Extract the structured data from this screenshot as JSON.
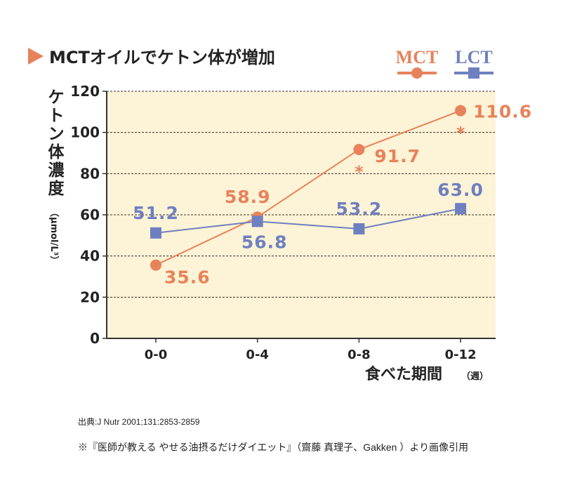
{
  "chart_data": {
    "type": "line",
    "title": "MCTオイルでケトン体が増加",
    "categories": [
      "0-0",
      "0-4",
      "0-8",
      "0-12"
    ],
    "series": [
      {
        "name": "MCT",
        "color": "#e8825a",
        "marker": "circle",
        "values": [
          35.6,
          58.9,
          91.7,
          110.6
        ],
        "labels": [
          "35.6",
          "58.9",
          "91.7",
          "110.6"
        ],
        "significance": [
          "",
          "",
          "*",
          "*"
        ]
      },
      {
        "name": "LCT",
        "color": "#6e80c0",
        "marker": "square",
        "values": [
          51.2,
          56.8,
          53.2,
          63.0
        ],
        "labels": [
          "51.2",
          "56.8",
          "53.2",
          "63.0"
        ]
      }
    ],
    "ylabel": "ケトン体濃度",
    "yunit": "（μmol/L³）",
    "xlabel": "食べた期間",
    "xunit": "（週）",
    "ylim": [
      0,
      120
    ],
    "yticks": [
      "0",
      "20",
      "40",
      "60",
      "80",
      "100",
      "120"
    ],
    "grid": true,
    "legend": "top-right",
    "background": "#fdf3d6"
  },
  "footer": {
    "source": "出典:J Nutr 2001;131:2853-2859",
    "citation": "※『医師が教える やせる油摂るだけダイエット』（齋藤 真理子、Gakken ）より画像引用"
  }
}
